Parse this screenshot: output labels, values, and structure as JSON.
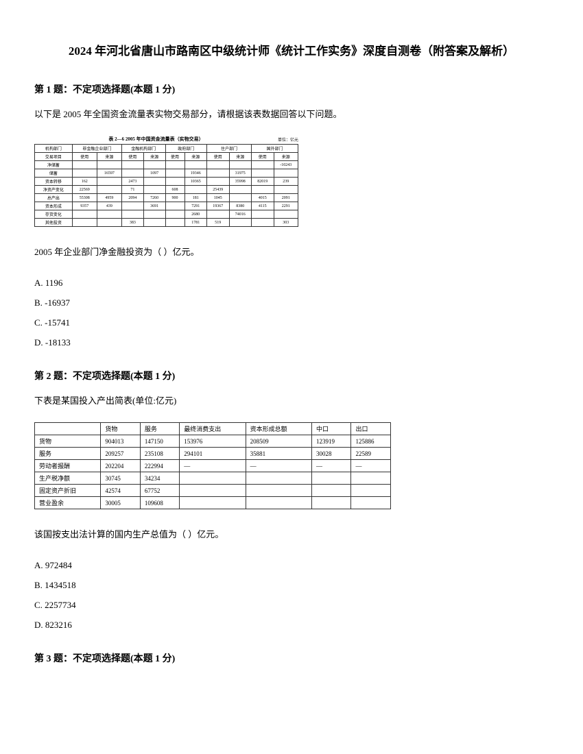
{
  "title": "2024 年河北省唐山市路南区中级统计师《统计工作实务》深度自测卷（附答案及解析）",
  "q1": {
    "header": "第 1 题：不定项选择题(本题 1 分)",
    "text": "以下是 2005 年全国资金流量表实物交易部分，请根据该表数据回答以下问题。",
    "tableTitle": "表 2—6  2005 年中国资金流量表（实物交易）",
    "tableUnit": "单位：亿元",
    "headers": {
      "r1c1": "机构部门",
      "r1c2": "非金融企业部门",
      "r1c3": "金融机构部门",
      "r1c4": "政府部门",
      "r1c5": "住户部门",
      "r1c6": "国外部门",
      "r2c1": "交易项目",
      "r2c2a": "使用",
      "r2c2b": "来源",
      "r2c3a": "使用",
      "r2c3b": "来源",
      "r2c4a": "使用",
      "r2c4b": "来源",
      "r2c5a": "使用",
      "r2c5b": "来源",
      "r2c6a": "使用",
      "r2c6b": "来源"
    },
    "rows": [
      {
        "label": "净储蓄",
        "c1": "",
        "c2": "",
        "c3": "",
        "c4": "",
        "c5": "",
        "c6": "",
        "c7": "",
        "c8": "",
        "c9": "",
        "c10": "-10243"
      },
      {
        "label": "储蓄",
        "c1": "",
        "c2": "16597",
        "c3": "",
        "c4": "1097",
        "c5": "",
        "c6": "19346",
        "c7": "",
        "c8": "31975",
        "c9": "",
        "c10": ""
      },
      {
        "label": "资本转移",
        "c1": "162",
        "c2": "",
        "c3": "2473",
        "c4": "",
        "c5": "",
        "c6": "10365",
        "c7": "",
        "c8": "35998",
        "c9": "82019",
        "c10": "239"
      },
      {
        "label": "净资产变化",
        "c1": "22569",
        "c2": "",
        "c3": "71",
        "c4": "",
        "c5": "608",
        "c6": "",
        "c7": "25439",
        "c8": "",
        "c9": "",
        "c10": ""
      },
      {
        "label": "总产出",
        "c1": "55308",
        "c2": "4959",
        "c3": "2094",
        "c4": "7260",
        "c5": "900",
        "c6": "181",
        "c7": "1045",
        "c8": "",
        "c9": "4015",
        "c10": "2091"
      },
      {
        "label": "资本形成",
        "c1": "9357",
        "c2": "439",
        "c3": "",
        "c4": "3691",
        "c5": "",
        "c6": "7291",
        "c7": "19367",
        "c8": "8380",
        "c9": "4115",
        "c10": "2291"
      },
      {
        "label": "存货变化",
        "c1": "",
        "c2": "",
        "c3": "",
        "c4": "",
        "c5": "",
        "c6": "2680",
        "c7": "",
        "c8": "74016",
        "c9": "",
        "c10": ""
      },
      {
        "label": "其他投资",
        "c1": "",
        "c2": "",
        "c3": "383",
        "c4": "",
        "c5": "",
        "c6": "1781",
        "c7": "519",
        "c8": "",
        "c9": "",
        "c10": "303"
      }
    ],
    "subQuestion": "2005 年企业部门净金融投资为（    ）亿元。",
    "options": {
      "a": "A. 1196",
      "b": "B. -16937",
      "c": "C. -15741",
      "d": "D. -18133"
    }
  },
  "q2": {
    "header": "第 2 题：不定项选择题(本题 1 分)",
    "text": "下表是某国投入产出简表(单位:亿元)",
    "headers": [
      "",
      "货物",
      "服务",
      "最终消费支出",
      "资本形成总额",
      "中口",
      "出口"
    ],
    "rows": [
      {
        "label": "货物",
        "c1": "904013",
        "c2": "147150",
        "c3": "153976",
        "c4": "208509",
        "c5": "123919",
        "c6": "125886"
      },
      {
        "label": "服务",
        "c1": "209257",
        "c2": "235108",
        "c3": "294101",
        "c4": "35881",
        "c5": "30028",
        "c6": "22589"
      },
      {
        "label": "劳动者报酬",
        "c1": "202204",
        "c2": "222994",
        "c3": "—",
        "c4": "—",
        "c5": "—",
        "c6": "—"
      },
      {
        "label": "生产税净额",
        "c1": "30745",
        "c2": "34234",
        "c3": "",
        "c4": "",
        "c5": "",
        "c6": ""
      },
      {
        "label": "固定资产折旧",
        "c1": "42574",
        "c2": "67752",
        "c3": "",
        "c4": "",
        "c5": "",
        "c6": ""
      },
      {
        "label": "营业盈余",
        "c1": "30005",
        "c2": "109608",
        "c3": "",
        "c4": "",
        "c5": "",
        "c6": ""
      }
    ],
    "subQuestion": "该国按支出法计算的国内生产总值为（    ）亿元。",
    "options": {
      "a": "A. 972484",
      "b": "B. 1434518",
      "c": "C. 2257734",
      "d": "D. 823216"
    }
  },
  "q3": {
    "header": "第 3 题：不定项选择题(本题 1 分)"
  }
}
